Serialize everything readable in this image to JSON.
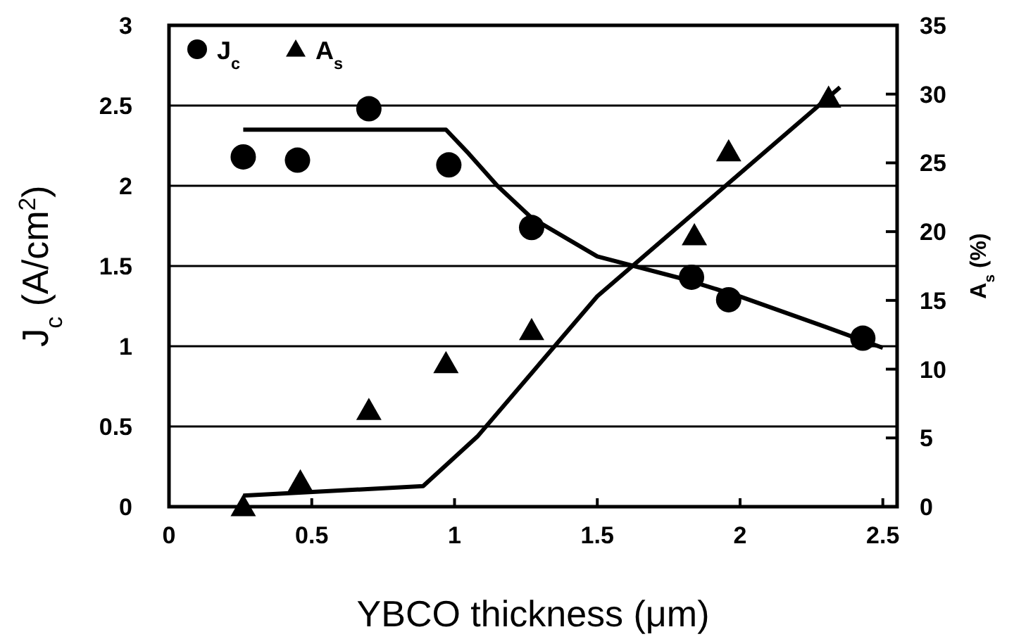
{
  "chart_data": {
    "type": "scatter",
    "xlabel": "YBCO thickness (μm)",
    "ylabel": "J$_{c}$ (A/cm$^{2}$)",
    "y2label": "A$_{s}$ (%)",
    "xlim": [
      0,
      2.55
    ],
    "xticks": [
      0,
      0.5,
      1,
      1.5,
      2,
      2.5
    ],
    "ylim": [
      0,
      3
    ],
    "yticks": [
      0,
      0.5,
      1,
      1.5,
      2,
      2.5,
      3
    ],
    "y2lim": [
      0,
      35
    ],
    "y2ticks": [
      0,
      5,
      10,
      15,
      20,
      25,
      30,
      35
    ],
    "grid": "y",
    "legend": "top left",
    "series": [
      {
        "name": "J$_{c}$",
        "marker": "circle",
        "color": "#000000",
        "x": [
          0.26,
          0.45,
          0.7,
          0.98,
          1.27,
          1.83,
          1.96,
          2.43
        ],
        "values": [
          2.18,
          2.16,
          2.48,
          2.13,
          1.74,
          1.43,
          1.29,
          1.05
        ]
      },
      {
        "name": "A$_{s}$",
        "marker": "triangle",
        "axis": "y2",
        "color": "#000000",
        "x": [
          0.26,
          0.46,
          0.7,
          0.97,
          1.27,
          1.84,
          1.96,
          2.31
        ],
        "values": [
          0,
          1.8,
          7.0,
          10.4,
          12.8,
          19.7,
          25.8,
          29.7
        ]
      },
      {
        "type": "line",
        "color": "#000000",
        "x": [
          0.26,
          0.97,
          1.05,
          1.15,
          1.27,
          1.5,
          1.8,
          2.0,
          2.3,
          2.5
        ],
        "values": [
          2.35,
          2.35,
          2.2,
          2.0,
          1.8,
          1.56,
          1.42,
          1.31,
          1.12,
          0.99
        ]
      },
      {
        "type": "line",
        "axis": "y2",
        "color": "#000000",
        "x": [
          0.26,
          0.89,
          1.08,
          1.5,
          2.35
        ],
        "values": [
          0.8,
          1.5,
          5.1,
          15.3,
          30.5
        ]
      }
    ]
  }
}
